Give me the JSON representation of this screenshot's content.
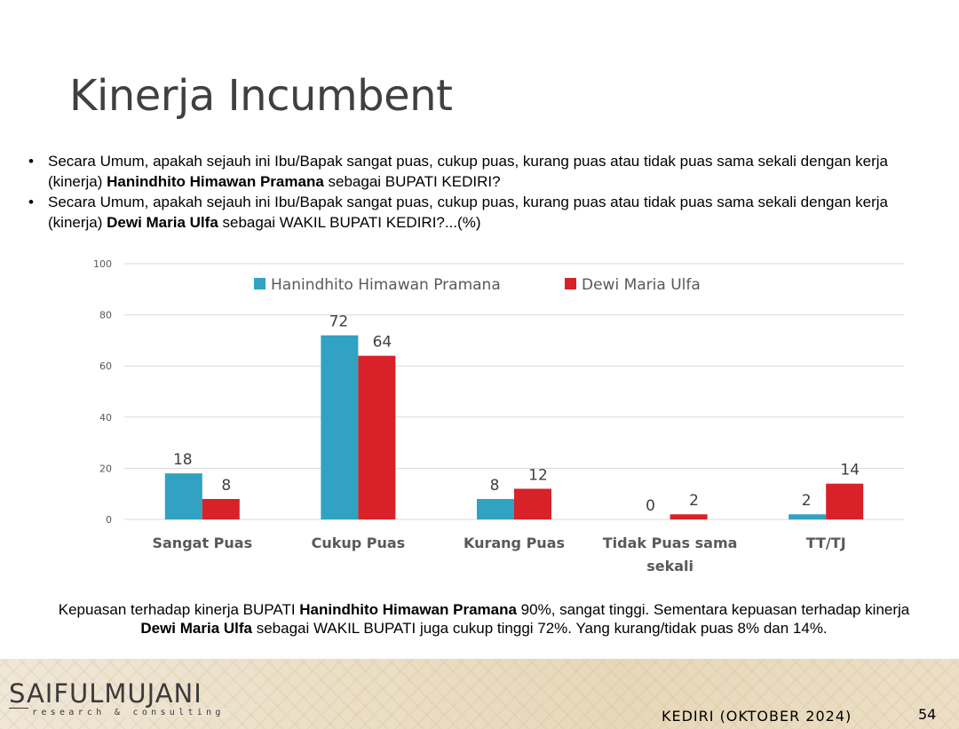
{
  "title": "Kinerja Incumbent",
  "bullets": [
    {
      "marker": "•",
      "part1": "Secara Umum, apakah sejauh ini Ibu/Bapak sangat puas, cukup puas, kurang puas atau tidak puas sama sekali dengan kerja (kinerja) ",
      "bold": "Hanindhito Himawan Pramana",
      "part2": "  sebagai BUPATI KEDIRI?"
    },
    {
      "marker": "•",
      "part1": "Secara Umum, apakah sejauh ini Ibu/Bapak sangat puas, cukup puas, kurang puas atau tidak puas sama sekali dengan kerja (kinerja) ",
      "bold": "Dewi Maria Ulfa",
      "part2": " sebagai WAKIL BUPATI KEDIRI?...(%)"
    }
  ],
  "chart_data": {
    "type": "bar",
    "categories": [
      "Sangat Puas",
      "Cukup Puas",
      "Kurang Puas",
      "Tidak Puas sama sekali",
      "TT/TJ"
    ],
    "series": [
      {
        "name": "Hanindhito Himawan Pramana",
        "color": "#31a2c1",
        "values": [
          18,
          72,
          8,
          0,
          2
        ]
      },
      {
        "name": "Dewi Maria Ulfa",
        "color": "#d92129",
        "values": [
          8,
          64,
          12,
          2,
          14
        ]
      }
    ],
    "yticks": [
      0,
      20,
      40,
      60,
      80,
      100
    ],
    "ylim": [
      0,
      100
    ],
    "grid": true,
    "legend": "top"
  },
  "conclusion": {
    "t1": "Kepuasan terhadap kinerja BUPATI ",
    "b1": "Hanindhito Himawan Pramana",
    "t2": " 90%, sangat tinggi. Sementara kepuasan terhadap kinerja ",
    "b2": "Dewi Maria Ulfa",
    "t3": " sebagai WAKIL BUPATI juga cukup tinggi 72%. Yang kurang/tidak puas 8% dan 14%."
  },
  "footer": {
    "logo_main": "SAIFULMUJANI",
    "logo_sub": "research & consulting",
    "location": "KEDIRI (OKTOBER 2024)",
    "page_number": "54"
  }
}
